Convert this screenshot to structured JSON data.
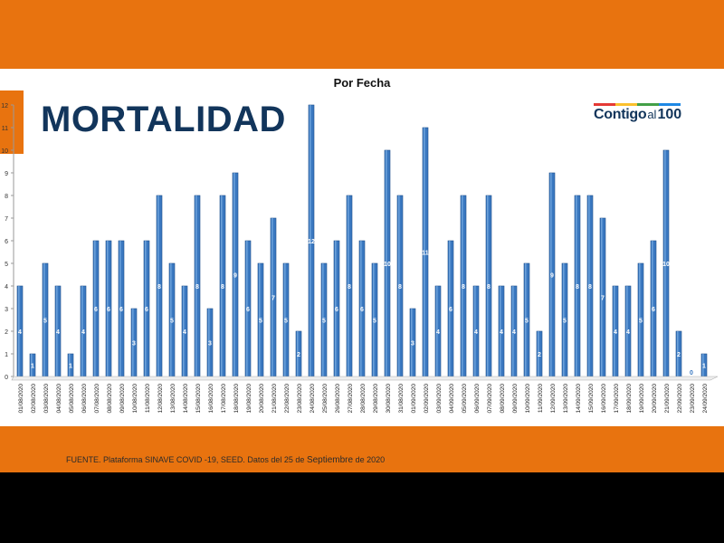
{
  "slide": {
    "title": "MORTALIDAD",
    "logo": {
      "word1": "Contigo",
      "word2": "al",
      "word3": "100",
      "stripe_colors": [
        "#e53935",
        "#fbc02d",
        "#43a047",
        "#1e88e5"
      ]
    },
    "source_prefix": "FUENTE. Plataforma SINAVE COVID -19, SEED. Datos del 25 de ",
    "source_month": "Septiembre",
    "source_suffix": " de 2020",
    "colors": {
      "orange": "#e8730f",
      "title_blue": "#12355b",
      "bar": "#3a78c0",
      "bar_edge": "#1f4f8a"
    }
  },
  "chart_data": {
    "type": "bar",
    "title": "Por Fecha",
    "xlabel": "",
    "ylabel": "",
    "ylim": [
      0,
      12
    ],
    "yticks": [
      0,
      1,
      2,
      3,
      4,
      5,
      6,
      7,
      8,
      9,
      10,
      11,
      12
    ],
    "grid": false,
    "legend": "none",
    "categories": [
      "01/08/2020",
      "02/08/2020",
      "03/08/2020",
      "04/08/2020",
      "05/08/2020",
      "06/08/2020",
      "07/08/2020",
      "08/08/2020",
      "09/08/2020",
      "10/08/2020",
      "11/08/2020",
      "12/08/2020",
      "13/08/2020",
      "14/08/2020",
      "15/08/2020",
      "16/08/2020",
      "17/08/2020",
      "18/08/2020",
      "19/08/2020",
      "20/08/2020",
      "21/08/2020",
      "22/08/2020",
      "23/08/2020",
      "24/08/2020",
      "25/08/2020",
      "26/08/2020",
      "27/08/2020",
      "28/08/2020",
      "29/08/2020",
      "30/08/2020",
      "31/08/2020",
      "01/09/2020",
      "02/09/2020",
      "03/09/2020",
      "04/09/2020",
      "05/09/2020",
      "06/09/2020",
      "07/09/2020",
      "08/09/2020",
      "09/09/2020",
      "10/09/2020",
      "11/09/2020",
      "12/09/2020",
      "13/09/2020",
      "14/09/2020",
      "15/09/2020",
      "16/09/2020",
      "17/09/2020",
      "18/09/2020",
      "19/09/2020",
      "20/09/2020",
      "21/09/2020",
      "22/09/2020",
      "23/09/2020",
      "24/09/2020"
    ],
    "values": [
      4,
      1,
      5,
      4,
      1,
      4,
      6,
      6,
      6,
      3,
      6,
      8,
      5,
      4,
      8,
      3,
      8,
      9,
      6,
      5,
      7,
      5,
      2,
      12,
      5,
      6,
      8,
      6,
      5,
      10,
      8,
      3,
      11,
      4,
      6,
      8,
      4,
      8,
      4,
      4,
      5,
      2,
      9,
      5,
      8,
      8,
      7,
      4,
      4,
      5,
      6,
      10,
      2,
      0,
      1
    ]
  }
}
